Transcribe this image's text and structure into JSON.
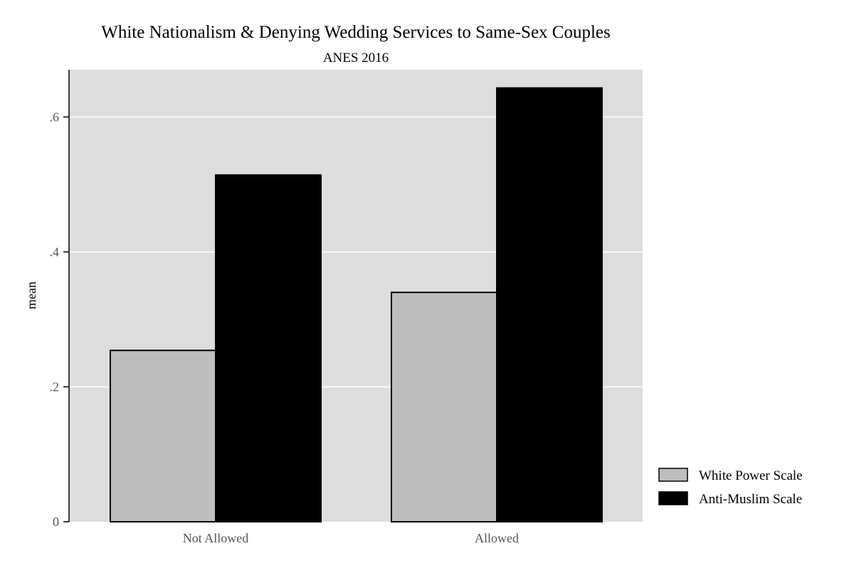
{
  "chart_data": {
    "type": "bar",
    "title": "White Nationalism & Denying Wedding Services to Same-Sex Couples",
    "subtitle": "ANES 2016",
    "xlabel": "",
    "ylabel": "mean",
    "categories": [
      "Not Allowed",
      "Allowed"
    ],
    "series": [
      {
        "name": "White Power Scale",
        "values": [
          0.254,
          0.34
        ],
        "color": "#bebebe"
      },
      {
        "name": "Anti-Muslim Scale",
        "values": [
          0.514,
          0.643
        ],
        "color": "#000000"
      }
    ],
    "ylim": [
      0,
      0.67
    ],
    "yticks": [
      0,
      0.2,
      0.4,
      0.6
    ],
    "ytick_labels": [
      "0",
      ".2",
      ".4",
      ".6"
    ],
    "grid": true,
    "legend_position": "right-bottom",
    "plot_background": "#dddddd"
  }
}
